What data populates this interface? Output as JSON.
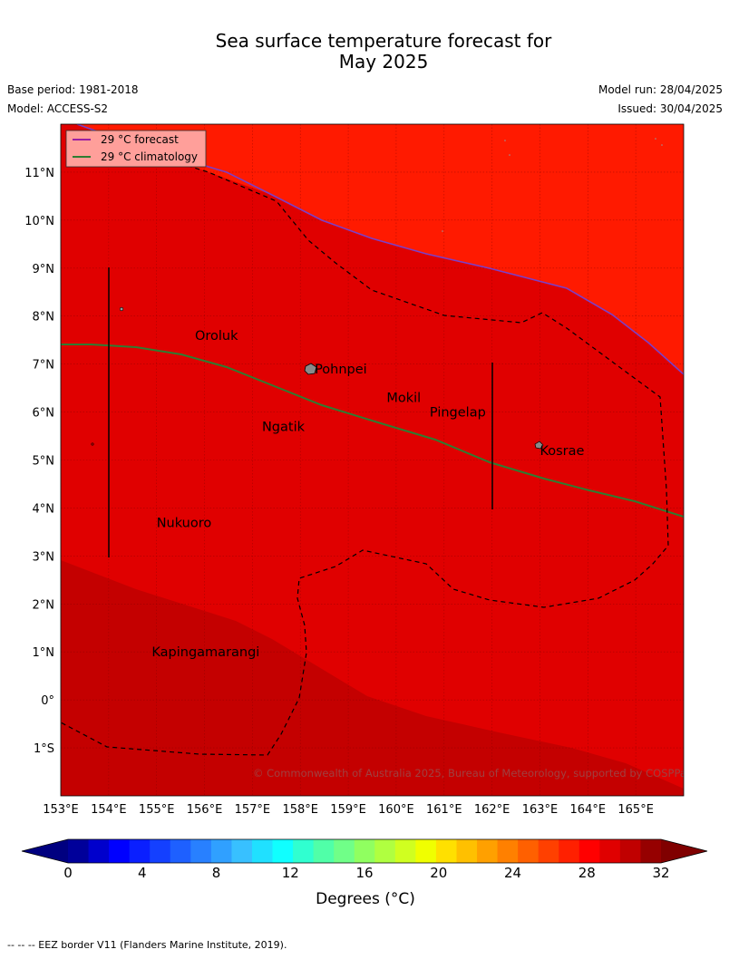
{
  "header": {
    "title_line1": "Sea surface temperature forecast for",
    "title_line2": "May 2025",
    "base_period": "Base period: 1981-2018",
    "model": "Model: ACCESS-S2",
    "model_run": "Model run: 28/04/2025",
    "issued": "Issued: 30/04/2025"
  },
  "legend": {
    "forecast": "29 °C  forecast",
    "climatology": "29 °C  climatology",
    "forecast_color": "#7b1fa2",
    "climatology_color": "#2e7d32"
  },
  "map": {
    "lon_labels": [
      "153°E",
      "154°E",
      "155°E",
      "156°E",
      "157°E",
      "158°E",
      "159°E",
      "160°E",
      "161°E",
      "162°E",
      "163°E",
      "164°E",
      "165°E"
    ],
    "lat_labels": [
      "11°N",
      "10°N",
      "9°N",
      "8°N",
      "7°N",
      "6°N",
      "5°N",
      "4°N",
      "3°N",
      "2°N",
      "1°N",
      "0°",
      "1°S"
    ],
    "place_labels": [
      {
        "name": "Oroluk",
        "lon": 155.8,
        "lat": 7.6
      },
      {
        "name": "Pohnpei",
        "lon": 158.3,
        "lat": 6.9
      },
      {
        "name": "Mokil",
        "lon": 159.8,
        "lat": 6.3
      },
      {
        "name": "Pingelap",
        "lon": 160.7,
        "lat": 6.0
      },
      {
        "name": "Ngatik",
        "lon": 157.2,
        "lat": 5.7
      },
      {
        "name": "Kosrae",
        "lon": 163.0,
        "lat": 5.2
      },
      {
        "name": "Nukuoro",
        "lon": 155.0,
        "lat": 3.7
      },
      {
        "name": "Kapingamarangi",
        "lon": 154.9,
        "lat": 1.0
      }
    ],
    "attribution": "© Commonwealth of Australia 2025, Bureau of Meteorology, supported by COSPPac",
    "colors": {
      "hot_29_30": "#e00000",
      "hot_30_31": "#c40000",
      "hot_28_29": "#ff1a00"
    }
  },
  "colorbar": {
    "ticks": [
      "0",
      "4",
      "8",
      "12",
      "16",
      "20",
      "24",
      "28",
      "32"
    ],
    "label": "Degrees (°C)",
    "colors": [
      "#00009a",
      "#0000cc",
      "#0000ff",
      "#0a1fff",
      "#1440ff",
      "#1e60ff",
      "#2880ff",
      "#30a0ff",
      "#38c0ff",
      "#20e0ff",
      "#10ffff",
      "#30ffd0",
      "#50ffa8",
      "#70ff88",
      "#90ff60",
      "#b0ff40",
      "#d0ff20",
      "#f0ff00",
      "#ffe000",
      "#ffc000",
      "#ffa000",
      "#ff8000",
      "#ff6000",
      "#ff4000",
      "#ff2000",
      "#ff0000",
      "#e00000",
      "#c00000",
      "#960000"
    ],
    "under_color": "#000080",
    "over_color": "#800000"
  },
  "footer": "--  --  -- EEZ border V11 (Flanders Marine Institute, 2019)."
}
